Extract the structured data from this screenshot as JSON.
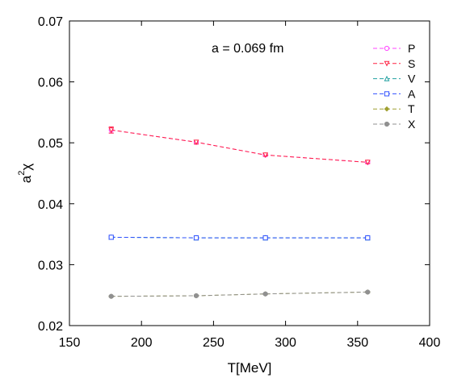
{
  "chart_data": {
    "type": "line",
    "title": "",
    "annotation": "a = 0.069 fm",
    "xlabel": "T[MeV]",
    "ylabel_base": "a",
    "ylabel_sup": "2",
    "ylabel_suffix": "χ",
    "xlim": [
      150,
      400
    ],
    "ylim": [
      0.02,
      0.07
    ],
    "xticks": [
      150,
      200,
      250,
      300,
      350,
      400
    ],
    "yticks": [
      "0.02",
      "0.03",
      "0.04",
      "0.05",
      "0.06",
      "0.07"
    ],
    "legend_position": "top-right",
    "grid": false,
    "x": [
      179,
      238,
      286,
      357
    ],
    "series": [
      {
        "name": "P",
        "color": "#ff44ff",
        "marker": "circle-open",
        "values": [
          0.0521,
          0.0501,
          0.048,
          0.0468
        ],
        "errors": [
          0.0005,
          0.0003,
          0.0002,
          0.0002
        ]
      },
      {
        "name": "S",
        "color": "#ff2040",
        "marker": "triangle-down-open",
        "values": [
          0.0521,
          0.0501,
          0.048,
          0.0468
        ],
        "errors": [
          0.0005,
          0.0003,
          0.0002,
          0.0002
        ]
      },
      {
        "name": "V",
        "color": "#20a0a0",
        "marker": "triangle-up-open",
        "values": [
          0.0345,
          0.0344,
          0.0344,
          0.0344
        ],
        "errors": [
          0.0001,
          0.0001,
          0.0001,
          0.0001
        ]
      },
      {
        "name": "A",
        "color": "#3050ff",
        "marker": "square-open",
        "values": [
          0.0345,
          0.0344,
          0.0344,
          0.0344
        ],
        "errors": [
          0.0001,
          0.0001,
          0.0001,
          0.0001
        ]
      },
      {
        "name": "T",
        "color": "#a0a030",
        "marker": "diamond-filled",
        "values": [
          0.0248,
          0.0249,
          0.0252,
          0.0255
        ],
        "errors": [
          0.0001,
          0.0001,
          0.0001,
          0.0001
        ]
      },
      {
        "name": "X",
        "color": "#909090",
        "marker": "circle-filled",
        "values": [
          0.0248,
          0.0249,
          0.0252,
          0.0255
        ],
        "errors": [
          0.0001,
          0.0001,
          0.0001,
          0.0001
        ]
      }
    ]
  }
}
